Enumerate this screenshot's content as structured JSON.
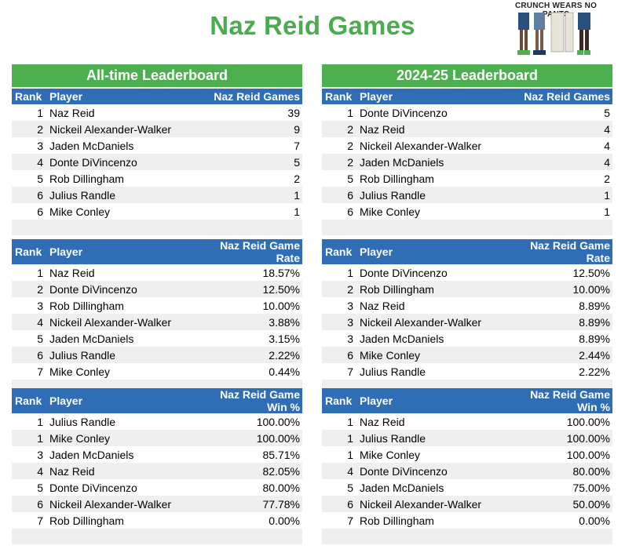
{
  "title": "Naz Reid Games",
  "logo": {
    "text": "CRUNCH WEARS NO PANTS"
  },
  "columns": {
    "left": {
      "header": "All-time Leaderboard",
      "tables": [
        {
          "headers": [
            "Rank",
            "Player",
            "Naz Reid Games"
          ],
          "rows": [
            {
              "rank": "1",
              "player": "Naz Reid",
              "value": "39"
            },
            {
              "rank": "2",
              "player": "Nickeil Alexander-Walker",
              "value": "9"
            },
            {
              "rank": "3",
              "player": "Jaden McDaniels",
              "value": "7"
            },
            {
              "rank": "4",
              "player": "Donte DiVincenzo",
              "value": "5"
            },
            {
              "rank": "5",
              "player": "Rob Dillingham",
              "value": "2"
            },
            {
              "rank": "6",
              "player": "Julius Randle",
              "value": "1"
            },
            {
              "rank": "6",
              "player": "Mike Conley",
              "value": "1"
            }
          ]
        },
        {
          "headers": [
            "Rank",
            "Player",
            "Naz Reid Game Rate"
          ],
          "rows": [
            {
              "rank": "1",
              "player": "Naz Reid",
              "value": "18.57%"
            },
            {
              "rank": "2",
              "player": "Donte DiVincenzo",
              "value": "12.50%"
            },
            {
              "rank": "3",
              "player": "Rob Dillingham",
              "value": "10.00%"
            },
            {
              "rank": "4",
              "player": "Nickeil Alexander-Walker",
              "value": "3.88%"
            },
            {
              "rank": "5",
              "player": "Jaden McDaniels",
              "value": "3.15%"
            },
            {
              "rank": "6",
              "player": "Julius Randle",
              "value": "2.22%"
            },
            {
              "rank": "7",
              "player": "Mike Conley",
              "value": "0.44%"
            }
          ]
        },
        {
          "headers": [
            "Rank",
            "Player",
            "Naz Reid Game Win %"
          ],
          "rows": [
            {
              "rank": "1",
              "player": "Julius Randle",
              "value": "100.00%"
            },
            {
              "rank": "1",
              "player": "Mike Conley",
              "value": "100.00%"
            },
            {
              "rank": "3",
              "player": "Jaden McDaniels",
              "value": "85.71%"
            },
            {
              "rank": "4",
              "player": "Naz Reid",
              "value": "82.05%"
            },
            {
              "rank": "5",
              "player": "Donte DiVincenzo",
              "value": "80.00%"
            },
            {
              "rank": "6",
              "player": "Nickeil Alexander-Walker",
              "value": "77.78%"
            },
            {
              "rank": "7",
              "player": "Rob Dillingham",
              "value": "0.00%"
            }
          ]
        }
      ]
    },
    "right": {
      "header": "2024-25 Leaderboard",
      "tables": [
        {
          "headers": [
            "Rank",
            "Player",
            "Naz Reid Games"
          ],
          "rows": [
            {
              "rank": "1",
              "player": "Donte DiVincenzo",
              "value": "5"
            },
            {
              "rank": "2",
              "player": "Naz Reid",
              "value": "4"
            },
            {
              "rank": "2",
              "player": "Nickeil Alexander-Walker",
              "value": "4"
            },
            {
              "rank": "2",
              "player": "Jaden McDaniels",
              "value": "4"
            },
            {
              "rank": "5",
              "player": "Rob Dillingham",
              "value": "2"
            },
            {
              "rank": "6",
              "player": "Julius Randle",
              "value": "1"
            },
            {
              "rank": "6",
              "player": "Mike Conley",
              "value": "1"
            }
          ]
        },
        {
          "headers": [
            "Rank",
            "Player",
            "Naz Reid Game Rate"
          ],
          "rows": [
            {
              "rank": "1",
              "player": "Donte DiVincenzo",
              "value": "12.50%"
            },
            {
              "rank": "2",
              "player": "Rob Dillingham",
              "value": "10.00%"
            },
            {
              "rank": "3",
              "player": "Naz Reid",
              "value": "8.89%"
            },
            {
              "rank": "3",
              "player": "Nickeil Alexander-Walker",
              "value": "8.89%"
            },
            {
              "rank": "3",
              "player": "Jaden McDaniels",
              "value": "8.89%"
            },
            {
              "rank": "6",
              "player": "Mike Conley",
              "value": "2.44%"
            },
            {
              "rank": "7",
              "player": "Julius Randle",
              "value": "2.22%"
            }
          ]
        },
        {
          "headers": [
            "Rank",
            "Player",
            "Naz Reid Game Win %"
          ],
          "rows": [
            {
              "rank": "1",
              "player": "Naz Reid",
              "value": "100.00%"
            },
            {
              "rank": "1",
              "player": "Julius Randle",
              "value": "100.00%"
            },
            {
              "rank": "1",
              "player": "Mike Conley",
              "value": "100.00%"
            },
            {
              "rank": "4",
              "player": "Donte DiVincenzo",
              "value": "80.00%"
            },
            {
              "rank": "5",
              "player": "Jaden McDaniels",
              "value": "75.00%"
            },
            {
              "rank": "6",
              "player": "Nickeil Alexander-Walker",
              "value": "50.00%"
            },
            {
              "rank": "7",
              "player": "Rob Dillingham",
              "value": "0.00%"
            }
          ]
        }
      ]
    }
  },
  "colors": {
    "title_green": "#4aab4f",
    "section_green": "#4caf50",
    "header_blue": "#2f6db5",
    "stripe_gray": "#efefef"
  }
}
